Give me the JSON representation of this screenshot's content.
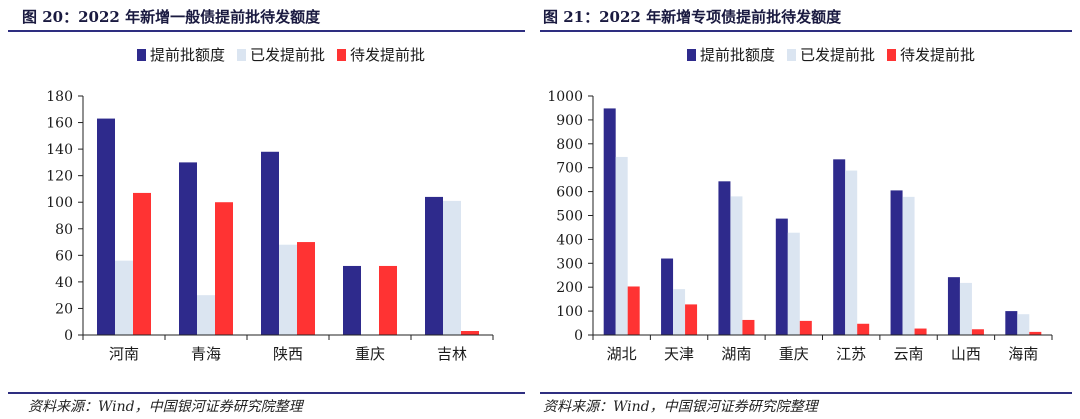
{
  "figures": [
    {
      "title": "图 20：2022 年新增一般债提前批待发额度",
      "source": "资料来源：Wind，中国银河证券研究院整理"
    },
    {
      "title": "图 21：2022 年新增专项债提前批待发额度",
      "source": "资料来源：Wind，中国银河证券研究院整理"
    }
  ],
  "chart_data": [
    {
      "type": "bar",
      "categories": [
        "河南",
        "青海",
        "陕西",
        "重庆",
        "吉林"
      ],
      "series": [
        {
          "name": "提前批额度",
          "values": [
            163,
            130,
            138,
            52,
            104
          ],
          "color": "#2e2a8c"
        },
        {
          "name": "已发提前批",
          "values": [
            56,
            30,
            68,
            0,
            101
          ],
          "color": "#dbe5f1"
        },
        {
          "name": "待发提前批",
          "values": [
            107,
            100,
            70,
            52,
            3
          ],
          "color": "#ff3333"
        }
      ],
      "ylim": [
        0,
        180
      ],
      "yticks": [
        0,
        20,
        40,
        60,
        80,
        100,
        120,
        140,
        160,
        180
      ],
      "legend_position": "top",
      "grid": false
    },
    {
      "type": "bar",
      "categories": [
        "湖北",
        "天津",
        "湖南",
        "重庆",
        "江苏",
        "云南",
        "山西",
        "海南"
      ],
      "series": [
        {
          "name": "提前批额度",
          "values": [
            948,
            320,
            643,
            487,
            735,
            605,
            242,
            100
          ],
          "color": "#2e2a8c"
        },
        {
          "name": "已发提前批",
          "values": [
            745,
            192,
            580,
            428,
            688,
            578,
            218,
            87
          ],
          "color": "#dbe5f1"
        },
        {
          "name": "待发提前批",
          "values": [
            203,
            128,
            63,
            59,
            47,
            27,
            24,
            13
          ],
          "color": "#ff3333"
        }
      ],
      "ylim": [
        0,
        1000
      ],
      "yticks": [
        0,
        100,
        200,
        300,
        400,
        500,
        600,
        700,
        800,
        900,
        1000
      ],
      "legend_position": "top",
      "grid": false
    }
  ]
}
